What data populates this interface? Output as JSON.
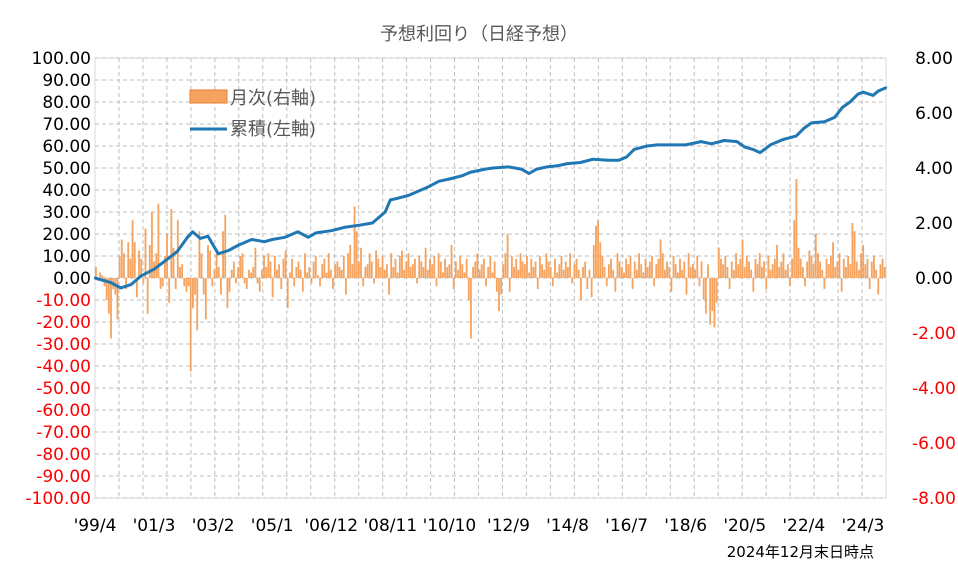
{
  "chart_data": {
    "type": "bar+line",
    "title": "予想利回り（日経予想）",
    "note": "2024年12月末日時点",
    "left_axis": {
      "ylim": [
        -100,
        100
      ],
      "ticks": [
        "100.00",
        "90.00",
        "80.00",
        "70.00",
        "60.00",
        "50.00",
        "40.00",
        "30.00",
        "20.00",
        "10.00",
        "0.00",
        "-10.00",
        "-20.00",
        "-30.00",
        "-40.00",
        "-50.00",
        "-60.00",
        "-70.00",
        "-80.00",
        "-90.00",
        "-100.00"
      ]
    },
    "right_axis": {
      "ylim": [
        -8,
        8
      ],
      "ticks": [
        "8.00",
        "6.00",
        "4.00",
        "2.00",
        "0.00",
        "-2.00",
        "-4.00",
        "-6.00",
        "-8.00"
      ]
    },
    "x_ticks": [
      "'99/4",
      "'01/3",
      "'03/2",
      "'05/1",
      "'06/12",
      "'08/11",
      "'10/10",
      "'12/9",
      "'14/8",
      "'16/7",
      "'18/6",
      "'20/5",
      "'22/4",
      "'24/3"
    ],
    "grid": true,
    "legend_position": "top-left",
    "colors": {
      "bar": "#F4A460",
      "bar_stroke": "#ED7D31",
      "line": "#1F77B4",
      "negative_tick": "#FF0000",
      "positive_tick": "#000000",
      "grid": "#BFBFBF"
    },
    "series": [
      {
        "name": "月次(右軸)",
        "kind": "bar",
        "axis": "right",
        "monthly_values": [
          0.4,
          -0.1,
          0.2,
          0.1,
          -0.3,
          -0.8,
          -1.3,
          -2.2,
          -0.4,
          -0.6,
          -1.5,
          0.8,
          1.4,
          0.9,
          -0.4,
          1.3,
          0.7,
          2.1,
          1.3,
          -0.7,
          1.0,
          0.7,
          -0.2,
          1.8,
          -1.3,
          1.2,
          2.4,
          0.6,
          0.9,
          2.7,
          -0.4,
          -0.3,
          0.8,
          1.6,
          -0.9,
          2.5,
          1.1,
          -0.4,
          2.1,
          0.4,
          0.5,
          -0.3,
          -0.5,
          -0.3,
          -3.4,
          -1.1,
          -0.6,
          -1.9,
          1.7,
          0.9,
          -0.6,
          -1.5,
          1.2,
          1.0,
          -0.3,
          0.3,
          0.9,
          0.4,
          -0.6,
          1.7,
          2.3,
          -1.1,
          -0.5,
          0.3,
          0.6,
          -0.2,
          0.4,
          0.8,
          0.9,
          -0.2,
          -0.4,
          0.3,
          0.2,
          0.4,
          1.1,
          -0.2,
          -0.5,
          0.3,
          0.8,
          0.4,
          0.9,
          0.6,
          -0.7,
          0.8,
          0.3,
          0.5,
          -0.4,
          0.7,
          1.0,
          -1.1,
          0.2,
          0.7,
          -0.3,
          0.4,
          0.6,
          0.3,
          -0.5,
          0.9,
          0.2,
          0.4,
          -0.2,
          0.6,
          0.8,
          0.1,
          -0.3,
          0.5,
          0.7,
          0.2,
          0.9,
          0.3,
          -0.4,
          0.5,
          0.6,
          0.4,
          0.3,
          0.8,
          -0.6,
          0.9,
          1.2,
          0.5,
          2.6,
          1.7,
          0.6,
          1.1,
          -0.3,
          0.4,
          0.5,
          0.9,
          0.6,
          -0.2,
          1.0,
          0.7,
          0.4,
          0.8,
          0.3,
          0.5,
          -0.6,
          0.9,
          0.4,
          0.7,
          0.2,
          0.8,
          1.0,
          0.3,
          0.6,
          0.9,
          0.4,
          0.5,
          0.7,
          -0.2,
          0.8,
          0.6,
          0.4,
          1.1,
          0.3,
          0.7,
          0.5,
          0.8,
          -0.3,
          0.9,
          0.6,
          0.2,
          0.7,
          0.4,
          0.5,
          1.2,
          -0.4,
          0.6,
          0.3,
          0.8,
          0.5,
          0.2,
          0.7,
          -0.8,
          -2.2,
          0.4,
          0.6,
          0.9,
          0.3,
          0.5,
          0.7,
          -0.3,
          0.4,
          0.8,
          0.2,
          0.6,
          -0.5,
          -1.2,
          -0.6,
          0.5,
          0.9,
          1.6,
          -0.5,
          0.8,
          0.4,
          0.7,
          0.3,
          0.9,
          0.6,
          0.5,
          0.8,
          0.2,
          0.7,
          0.4,
          0.6,
          -0.4,
          0.8,
          0.5,
          0.3,
          0.9,
          0.6,
          0.4,
          -0.3,
          0.7,
          0.2,
          0.5,
          0.8,
          0.3,
          0.6,
          0.4,
          0.9,
          -0.2,
          0.5,
          0.7,
          0.3,
          -0.8,
          0.4,
          0.6,
          -0.4,
          0.3,
          -0.7,
          1.2,
          1.9,
          2.1,
          1.3,
          0.8,
          0.4,
          -0.3,
          0.5,
          0.7,
          0.3,
          -0.5,
          0.9,
          0.6,
          0.4,
          0.2,
          0.7,
          0.5,
          0.8,
          -0.4,
          0.6,
          0.3,
          0.9,
          0.5,
          0.2,
          0.7,
          0.4,
          0.6,
          0.8,
          -0.3,
          0.5,
          0.7,
          1.4,
          0.9,
          0.3,
          0.6,
          0.4,
          -0.5,
          0.8,
          0.5,
          0.2,
          0.7,
          0.3,
          0.6,
          -0.6,
          0.9,
          0.4,
          0.5,
          0.3,
          0.8,
          -0.3,
          0.6,
          -0.8,
          -1.3,
          0.5,
          -1.7,
          -1.2,
          -1.8,
          -0.9,
          1.1,
          0.7,
          0.5,
          0.8,
          0.4,
          -0.4,
          0.6,
          0.3,
          0.9,
          0.5,
          0.7,
          1.4,
          0.4,
          0.8,
          0.6,
          0.3,
          -0.5,
          0.7,
          0.5,
          0.9,
          0.4,
          0.6,
          -0.4,
          0.8,
          0.3,
          0.5,
          0.7,
          1.2,
          0.4,
          0.6,
          0.9,
          0.3,
          0.5,
          -0.3,
          0.7,
          2.1,
          3.6,
          1.1,
          0.7,
          0.4,
          -0.3,
          0.6,
          1.0,
          0.8,
          0.5,
          1.6,
          0.9,
          0.6,
          0.3,
          -0.4,
          0.7,
          0.5,
          0.8,
          1.3,
          0.4,
          0.6,
          0.9,
          -0.5,
          0.7,
          0.4,
          0.8,
          0.5,
          2.0,
          1.7,
          0.6,
          0.3,
          0.9,
          1.2,
          0.5,
          0.7,
          -0.4,
          0.6,
          0.8,
          0.3,
          -0.6,
          0.5,
          0.7,
          0.4
        ]
      },
      {
        "name": "累積(左軸)",
        "kind": "line",
        "axis": "left",
        "points": [
          [
            "'99/4",
            0.0
          ],
          [
            "'99/10",
            -2.0
          ],
          [
            "'00/2",
            -4.5
          ],
          [
            "'00/6",
            -3.0
          ],
          [
            "'00/10",
            1.0
          ],
          [
            "'01/3",
            4.0
          ],
          [
            "'01/7",
            7.5
          ],
          [
            "'01/12",
            12.0
          ],
          [
            "'02/4",
            18.5
          ],
          [
            "'02/6",
            21.0
          ],
          [
            "'02/9",
            18.0
          ],
          [
            "'02/12",
            19.0
          ],
          [
            "'03/2",
            15.0
          ],
          [
            "'03/4",
            11.0
          ],
          [
            "'03/8",
            12.5
          ],
          [
            "'03/12",
            15.0
          ],
          [
            "'04/5",
            17.5
          ],
          [
            "'04/10",
            16.5
          ],
          [
            "'05/1",
            17.5
          ],
          [
            "'05/6",
            18.5
          ],
          [
            "'05/11",
            21.0
          ],
          [
            "'06/3",
            18.5
          ],
          [
            "'06/6",
            20.5
          ],
          [
            "'06/12",
            21.5
          ],
          [
            "'07/5",
            23.0
          ],
          [
            "'07/11",
            24.0
          ],
          [
            "'08/4",
            25.0
          ],
          [
            "'08/7",
            28.0
          ],
          [
            "'08/9",
            30.0
          ],
          [
            "'08/11",
            35.5
          ],
          [
            "'09/1",
            36.0
          ],
          [
            "'09/6",
            37.5
          ],
          [
            "'10/1",
            41.0
          ],
          [
            "'10/6",
            44.0
          ],
          [
            "'10/10",
            45.0
          ],
          [
            "'11/3",
            46.5
          ],
          [
            "'11/6",
            48.0
          ],
          [
            "'11/12",
            49.5
          ],
          [
            "'12/3",
            50.0
          ],
          [
            "'12/9",
            50.5
          ],
          [
            "'13/2",
            49.5
          ],
          [
            "'13/5",
            47.5
          ],
          [
            "'13/8",
            49.5
          ],
          [
            "'13/12",
            50.5
          ],
          [
            "'14/4",
            51.0
          ],
          [
            "'14/8",
            52.0
          ],
          [
            "'15/1",
            52.5
          ],
          [
            "'15/6",
            54.0
          ],
          [
            "'15/12",
            53.5
          ],
          [
            "'16/4",
            53.5
          ],
          [
            "'16/7",
            55.0
          ],
          [
            "'16/10",
            58.5
          ],
          [
            "'17/3",
            60.0
          ],
          [
            "'17/7",
            60.5
          ],
          [
            "'18/1",
            60.5
          ],
          [
            "'18/6",
            60.5
          ],
          [
            "'18/12",
            62.0
          ],
          [
            "'19/4",
            61.0
          ],
          [
            "'19/9",
            62.5
          ],
          [
            "'20/2",
            62.0
          ],
          [
            "'20/5",
            59.5
          ],
          [
            "'20/8",
            58.5
          ],
          [
            "'20/11",
            57.0
          ],
          [
            "'21/3",
            60.5
          ],
          [
            "'21/8",
            63.0
          ],
          [
            "'22/1",
            64.5
          ],
          [
            "'22/4",
            68.0
          ],
          [
            "'22/7",
            70.5
          ],
          [
            "'22/12",
            71.0
          ],
          [
            "'23/4",
            73.0
          ],
          [
            "'23/7",
            77.5
          ],
          [
            "'23/10",
            80.0
          ],
          [
            "'24/1",
            83.5
          ],
          [
            "'24/3",
            84.5
          ],
          [
            "'24/7",
            83.0
          ],
          [
            "'24/9",
            85.0
          ],
          [
            "'24/12",
            86.5
          ]
        ]
      }
    ]
  }
}
